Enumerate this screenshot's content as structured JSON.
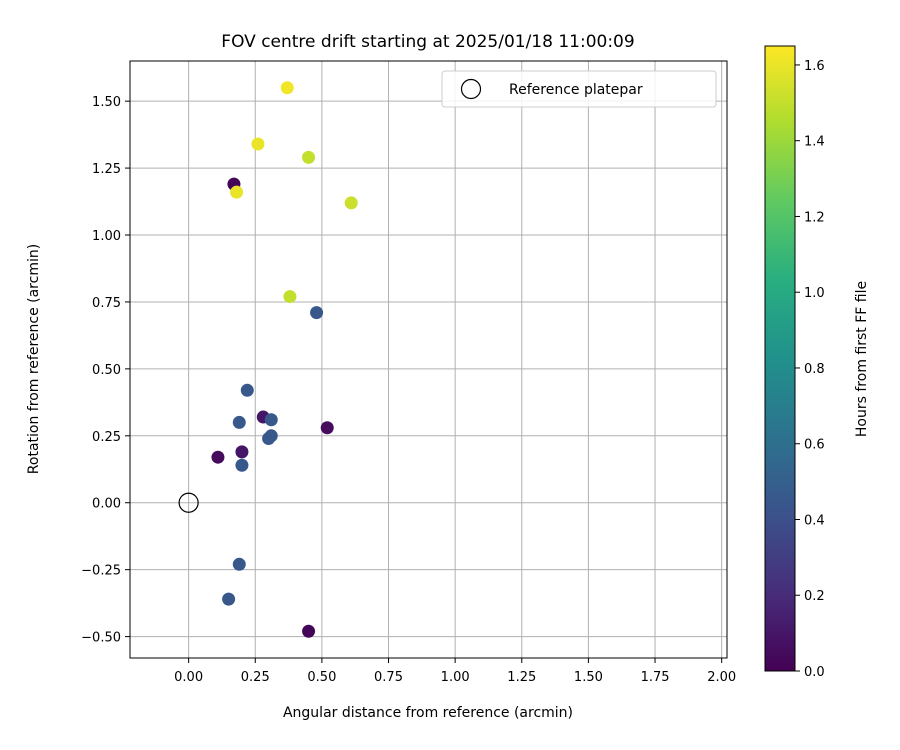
{
  "chart_data": {
    "type": "scatter",
    "title": "FOV centre drift starting at 2025/01/18 11:00:09",
    "xlabel": "Angular distance from reference (arcmin)",
    "ylabel": "Rotation from reference (arcmin)",
    "xlim": [
      -0.22,
      2.02
    ],
    "ylim": [
      -0.58,
      1.65
    ],
    "x_ticks": [
      "0.00",
      "0.25",
      "0.50",
      "0.75",
      "1.00",
      "1.25",
      "1.50",
      "1.75",
      "2.00"
    ],
    "y_ticks": [
      "−0.50",
      "−0.25",
      "0.00",
      "0.25",
      "0.50",
      "0.75",
      "1.00",
      "1.25",
      "1.50"
    ],
    "grid": true,
    "legend": {
      "placement": "top-right",
      "entries": [
        "Reference platepar"
      ]
    },
    "reference_point": {
      "x": 0.0,
      "y": 0.0
    },
    "colorbar": {
      "label": "Hours from first FF file",
      "colormap": "viridis",
      "range": [
        0.0,
        1.65
      ],
      "ticks": [
        "0.0",
        "0.2",
        "0.4",
        "0.6",
        "0.8",
        "1.0",
        "1.2",
        "1.4",
        "1.6"
      ]
    },
    "points": [
      {
        "x": 0.37,
        "y": 1.55,
        "hours": 1.62
      },
      {
        "x": 0.26,
        "y": 1.34,
        "hours": 1.6
      },
      {
        "x": 0.45,
        "y": 1.29,
        "hours": 1.5
      },
      {
        "x": 0.17,
        "y": 1.19,
        "hours": 0.02
      },
      {
        "x": 0.18,
        "y": 1.16,
        "hours": 1.6
      },
      {
        "x": 0.61,
        "y": 1.12,
        "hours": 1.52
      },
      {
        "x": 0.38,
        "y": 0.77,
        "hours": 1.5
      },
      {
        "x": 0.48,
        "y": 0.71,
        "hours": 0.45
      },
      {
        "x": 0.22,
        "y": 0.42,
        "hours": 0.45
      },
      {
        "x": 0.28,
        "y": 0.32,
        "hours": 0.1
      },
      {
        "x": 0.19,
        "y": 0.3,
        "hours": 0.45
      },
      {
        "x": 0.31,
        "y": 0.31,
        "hours": 0.45
      },
      {
        "x": 0.52,
        "y": 0.28,
        "hours": 0.05
      },
      {
        "x": 0.31,
        "y": 0.25,
        "hours": 0.45
      },
      {
        "x": 0.3,
        "y": 0.24,
        "hours": 0.45
      },
      {
        "x": 0.2,
        "y": 0.19,
        "hours": 0.1
      },
      {
        "x": 0.11,
        "y": 0.17,
        "hours": 0.05
      },
      {
        "x": 0.2,
        "y": 0.14,
        "hours": 0.45
      },
      {
        "x": 0.19,
        "y": -0.23,
        "hours": 0.45
      },
      {
        "x": 0.15,
        "y": -0.36,
        "hours": 0.45
      },
      {
        "x": 0.45,
        "y": -0.48,
        "hours": 0.02
      }
    ]
  }
}
